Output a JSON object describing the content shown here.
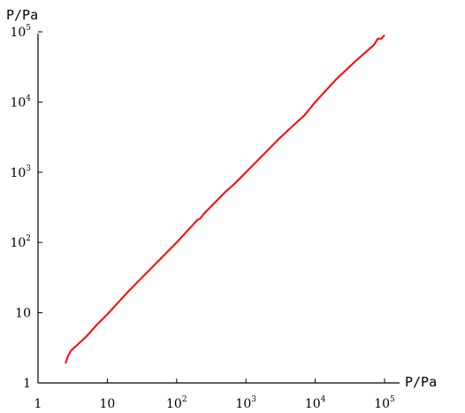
{
  "chart_data": {
    "type": "line",
    "xlabel": "P/Pa",
    "ylabel": "P/Pa",
    "xscale": "log",
    "yscale": "log",
    "xlim": [
      1,
      100000
    ],
    "ylim": [
      1,
      100000
    ],
    "grid": false,
    "x_ticks": [
      {
        "base": "1",
        "exp": ""
      },
      {
        "base": "10",
        "exp": ""
      },
      {
        "base": "10",
        "exp": "2"
      },
      {
        "base": "10",
        "exp": "3"
      },
      {
        "base": "10",
        "exp": "4"
      },
      {
        "base": "10",
        "exp": "5"
      }
    ],
    "y_ticks": [
      {
        "base": "1",
        "exp": ""
      },
      {
        "base": "10",
        "exp": ""
      },
      {
        "base": "10",
        "exp": "2"
      },
      {
        "base": "10",
        "exp": "3"
      },
      {
        "base": "10",
        "exp": "4"
      },
      {
        "base": "10",
        "exp": "5"
      }
    ],
    "series": [
      {
        "color": "#ff0000",
        "x": [
          2.5,
          2.7,
          3.0,
          3.6,
          5.0,
          7.0,
          10,
          20,
          30,
          100,
          200,
          220,
          250,
          500,
          700,
          800,
          1000,
          2000,
          3000,
          5000,
          7000,
          10000,
          20000,
          40000,
          70000,
          80000,
          90000,
          100000
        ],
        "y": [
          1.9,
          2.4,
          2.9,
          3.4,
          4.6,
          6.7,
          9.5,
          20,
          30,
          100,
          210,
          220,
          260,
          520,
          700,
          800,
          1000,
          2000,
          3000,
          4800,
          6500,
          10000,
          21000,
          40000,
          65000,
          80000,
          80000,
          90000
        ]
      }
    ]
  }
}
